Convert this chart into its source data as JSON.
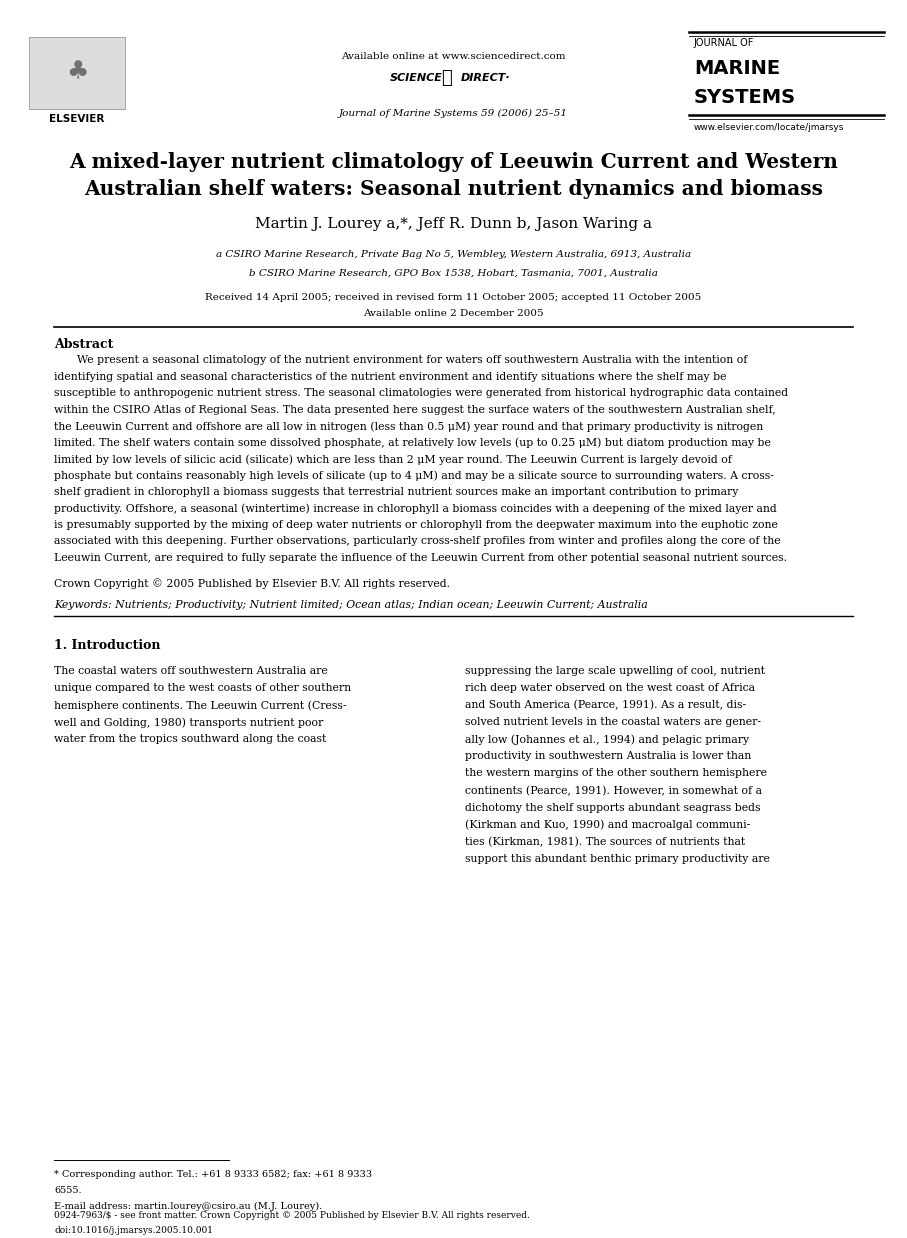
{
  "fig_width": 9.07,
  "fig_height": 12.38,
  "dpi": 100,
  "bg_color": "#ffffff",
  "header": {
    "available_online": "Available online at www.sciencedirect.com",
    "journal_name_line1": "JOURNAL OF",
    "journal_name_line2": "MARINE",
    "journal_name_line3": "SYSTEMS",
    "journal_ref": "Journal of Marine Systems 59 (2006) 25–51",
    "website": "www.elsevier.com/locate/jmarsys"
  },
  "title": "A mixed-layer nutrient climatology of Leeuwin Current and Western\nAustralian shelf waters: Seasonal nutrient dynamics and biomass",
  "authors": "Martin J. Lourey a,*, Jeff R. Dunn b, Jason Waring a",
  "affil_a": "a CSIRO Marine Research, Private Bag No 5, Wembley, Western Australia, 6913, Australia",
  "affil_b": "b CSIRO Marine Research, GPO Box 1538, Hobart, Tasmania, 7001, Australia",
  "received": "Received 14 April 2005; received in revised form 11 October 2005; accepted 11 October 2005",
  "available_online_paper": "Available online 2 December 2005",
  "abstract_heading": "Abstract",
  "copyright": "Crown Copyright © 2005 Published by Elsevier B.V. All rights reserved.",
  "keywords": "Keywords: Nutrients; Productivity; Nutrient limited; Ocean atlas; Indian ocean; Leeuwin Current; Australia",
  "section1_heading": "1. Introduction",
  "footnote_star_1": "* Corresponding author. Tel.: +61 8 9333 6582; fax: +61 8 9333",
  "footnote_star_2": "6555.",
  "footnote_email": "E-mail address: martin.lourey@csiro.au (M.J. Lourey).",
  "footer_issn": "0924-7963/$ - see front matter. Crown Copyright © 2005 Published by Elsevier B.V. All rights reserved.",
  "footer_doi": "doi:10.1016/j.jmarsys.2005.10.001",
  "abstract_lines": [
    "We present a seasonal climatology of the nutrient environment for waters off southwestern Australia with the intention of",
    "identifying spatial and seasonal characteristics of the nutrient environment and identify situations where the shelf may be",
    "susceptible to anthropogenic nutrient stress. The seasonal climatologies were generated from historical hydrographic data contained",
    "within the CSIRO Atlas of Regional Seas. The data presented here suggest the surface waters of the southwestern Australian shelf,",
    "the Leeuwin Current and offshore are all low in nitrogen (less than 0.5 μM) year round and that primary productivity is nitrogen",
    "limited. The shelf waters contain some dissolved phosphate, at relatively low levels (up to 0.25 μM) but diatom production may be",
    "limited by low levels of silicic acid (silicate) which are less than 2 μM year round. The Leeuwin Current is largely devoid of",
    "phosphate but contains reasonably high levels of silicate (up to 4 μM) and may be a silicate source to surrounding waters. A cross-",
    "shelf gradient in chlorophyll a biomass suggests that terrestrial nutrient sources make an important contribution to primary",
    "productivity. Offshore, a seasonal (wintertime) increase in chlorophyll a biomass coincides with a deepening of the mixed layer and",
    "is presumably supported by the mixing of deep water nutrients or chlorophyll from the deepwater maximum into the euphotic zone",
    "associated with this deepening. Further observations, particularly cross-shelf profiles from winter and profiles along the core of the",
    "Leeuwin Current, are required to fully separate the influence of the Leeuwin Current from other potential seasonal nutrient sources."
  ],
  "intro_col1_lines": [
    "The coastal waters off southwestern Australia are",
    "unique compared to the west coasts of other southern",
    "hemisphere continents. The Leeuwin Current (Cress-",
    "well and Golding, 1980) transports nutrient poor",
    "water from the tropics southward along the coast"
  ],
  "intro_col2_lines": [
    "suppressing the large scale upwelling of cool, nutrient",
    "rich deep water observed on the west coast of Africa",
    "and South America (Pearce, 1991). As a result, dis-",
    "solved nutrient levels in the coastal waters are gener-",
    "ally low (Johannes et al., 1994) and pelagic primary",
    "productivity in southwestern Australia is lower than",
    "the western margins of the other southern hemisphere",
    "continents (Pearce, 1991). However, in somewhat of a",
    "dichotomy the shelf supports abundant seagrass beds",
    "(Kirkman and Kuo, 1990) and macroalgal communi-",
    "ties (Kirkman, 1981). The sources of nutrients that",
    "support this abundant benthic primary productivity are"
  ]
}
